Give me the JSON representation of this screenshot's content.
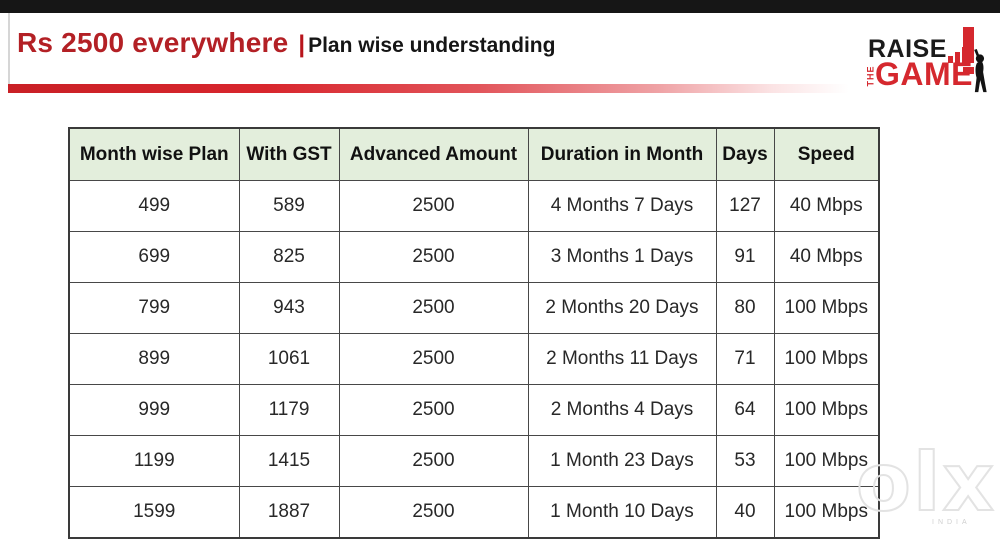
{
  "header": {
    "title_red": "Rs 2500 everywhere",
    "separator": "|",
    "title_black": "Plan wise understanding",
    "accent_red": "#b32025",
    "divider_red": "#d8262d",
    "top_bar_color": "#161616"
  },
  "logo": {
    "word1": "RAISE",
    "word2": "THE",
    "word3": "GAME",
    "red": "#d5282e",
    "black": "#1b1b1b"
  },
  "table": {
    "header_bg": "#e3eedc",
    "border_color": "#474747",
    "columns": [
      "Month wise Plan",
      "With GST",
      "Advanced Amount",
      "Duration in Month",
      "Days",
      "Speed"
    ],
    "rows": [
      [
        "499",
        "589",
        "2500",
        "4 Months 7 Days",
        "127",
        "40 Mbps"
      ],
      [
        "699",
        "825",
        "2500",
        "3 Months 1 Days",
        "91",
        "40 Mbps"
      ],
      [
        "799",
        "943",
        "2500",
        "2 Months 20 Days",
        "80",
        "100 Mbps"
      ],
      [
        "899",
        "1061",
        "2500",
        "2 Months 11 Days",
        "71",
        "100 Mbps"
      ],
      [
        "999",
        "1179",
        "2500",
        "2 Months 4 Days",
        "64",
        "100 Mbps"
      ],
      [
        "1199",
        "1415",
        "2500",
        "1 Month 23 Days",
        "53",
        "100 Mbps"
      ],
      [
        "1599",
        "1887",
        "2500",
        "1 Month 10 Days",
        "40",
        "100 Mbps"
      ]
    ]
  },
  "watermark": {
    "text": "olx",
    "sub": "INDIA"
  }
}
